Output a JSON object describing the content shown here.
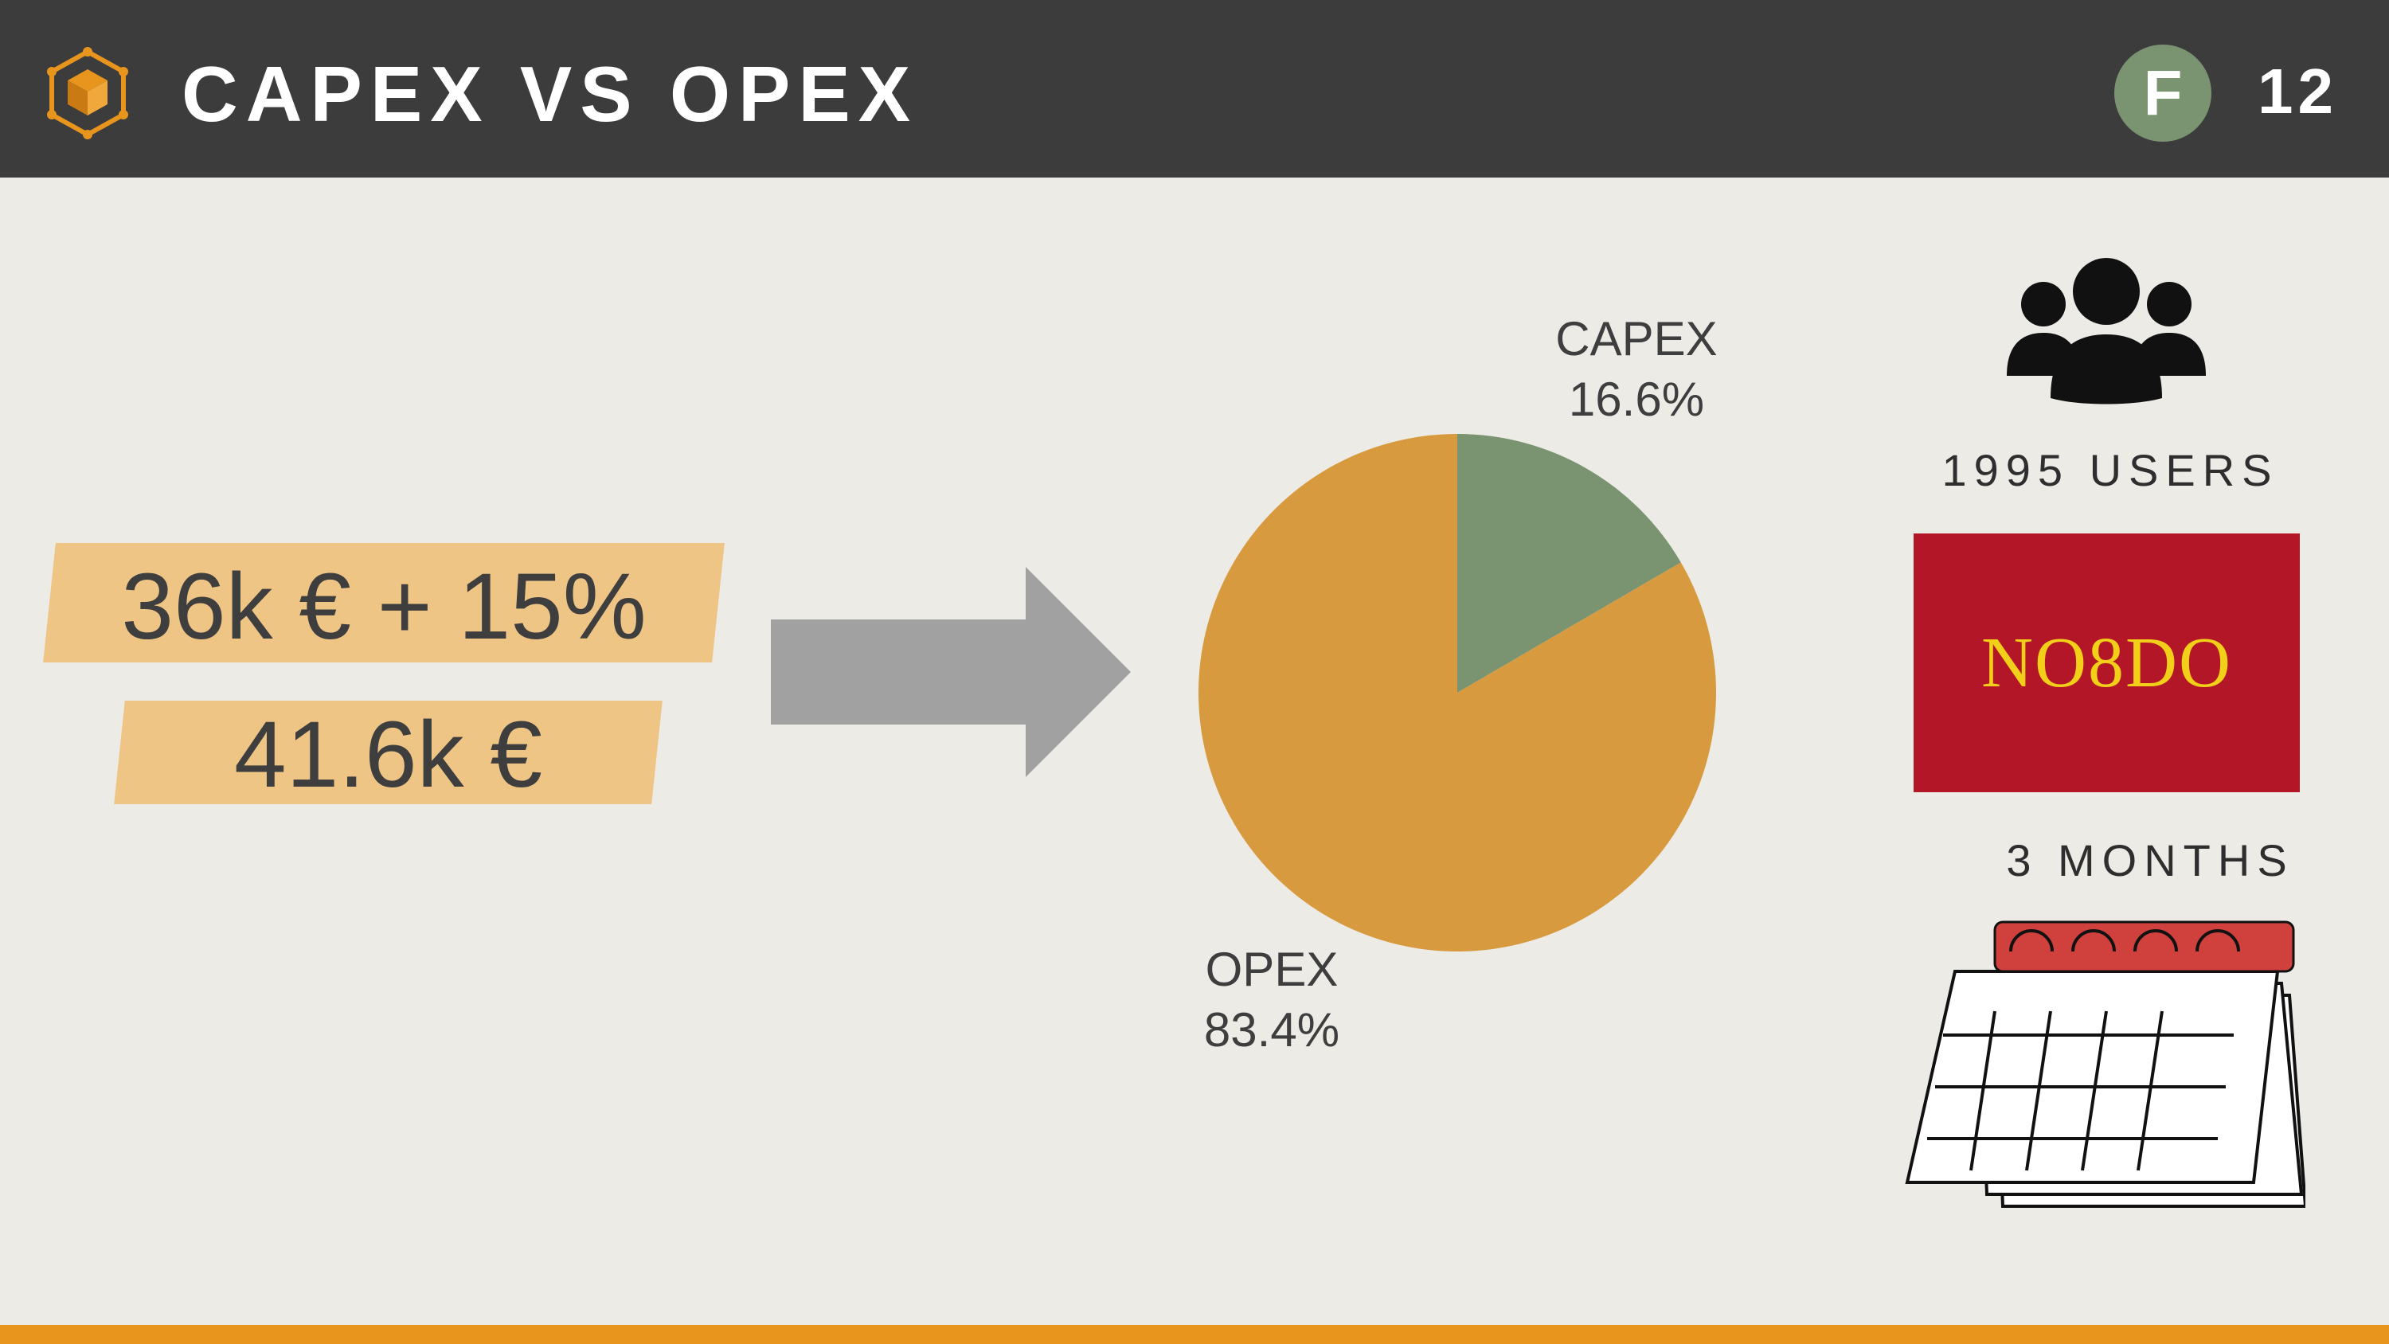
{
  "header": {
    "title": "CAPEX VS OPEX",
    "badge_letter": "F",
    "page_number": "12"
  },
  "icons": {
    "logo": "hexagon-cube-icon",
    "users": "users-group-icon",
    "calendar": "calendar-icon",
    "arrow": "right-arrow-icon"
  },
  "left": {
    "line_1": "36k € + 15%",
    "line_2": "41.6k €"
  },
  "right": {
    "users_text": "1995 USERS",
    "brand_text": "NO8DO",
    "months_text": "3 MONTHS"
  },
  "colors": {
    "header_bg": "#3c3c3c",
    "background": "#ecebe6",
    "capex": "#7a9371",
    "opex": "#d89a3e",
    "accent": "#e8951e",
    "highlight": "#eec585",
    "brand_bg": "#b31727",
    "brand_text": "#f2cf18",
    "arrow": "#a1a1a1"
  },
  "chart_data": {
    "type": "pie",
    "title": "",
    "slices": [
      {
        "label": "CAPEX",
        "value": 16.6,
        "display": "16.6%",
        "color": "#7a9371"
      },
      {
        "label": "OPEX",
        "value": 83.4,
        "display": "83.4%",
        "color": "#d89a3e"
      }
    ]
  }
}
